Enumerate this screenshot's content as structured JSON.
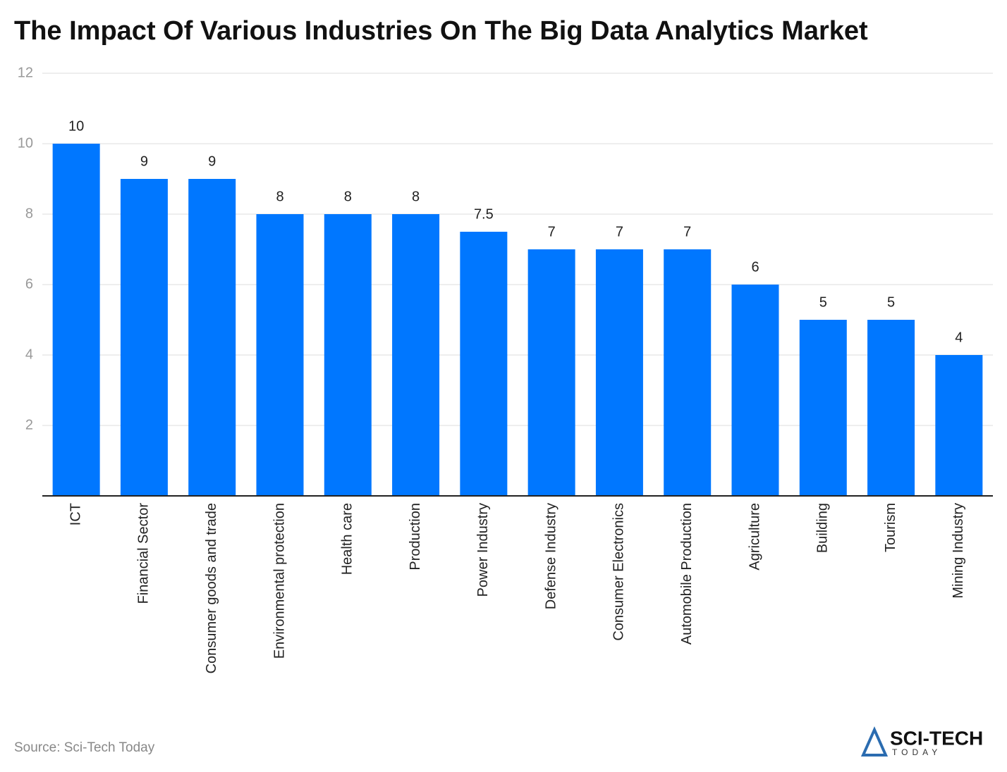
{
  "chart_data": {
    "type": "bar",
    "title": "The Impact Of Various Industries On The Big Data Analytics Market",
    "categories": [
      "ICT",
      "Financial Sector",
      "Consumer goods and trade",
      "Environmental protection",
      "Health care",
      "Production",
      "Power Industry",
      "Defense Industry",
      "Consumer Electronics",
      "Automobile Production",
      "Agriculture",
      "Building",
      "Tourism",
      "Mining Industry"
    ],
    "values": [
      10,
      9,
      9,
      8,
      8,
      8,
      7.5,
      7,
      7,
      7,
      6,
      5,
      5,
      4
    ],
    "color": "#0077ff",
    "ylim": [
      0,
      12
    ],
    "yticks": [
      2,
      4,
      6,
      8,
      10,
      12
    ],
    "grid": true,
    "source": "Source: Sci-Tech Today",
    "logo": {
      "name": "SCI-TECH",
      "tagline": "TODAY"
    }
  }
}
